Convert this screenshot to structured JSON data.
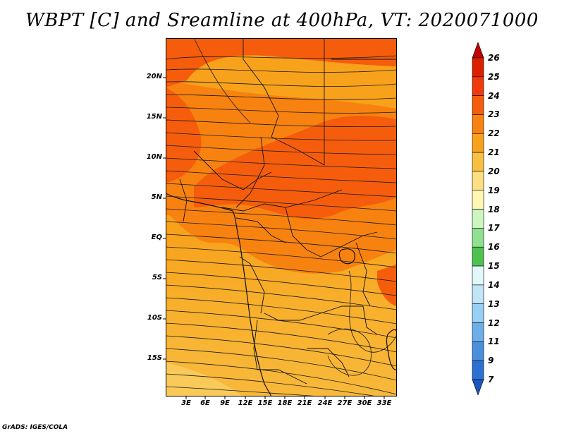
{
  "title": "WBPT [C] and Sreamline at 400hPa, VT: 2020071000",
  "footer": "GrADS: IGES/COLA",
  "map": {
    "region": "Central and East Africa",
    "field": "WBPT",
    "units": "C",
    "level": "400hPa",
    "overlay": "streamlines",
    "lat_labels": [
      "20N",
      "15N",
      "10N",
      "5N",
      "EQ",
      "5S",
      "10S",
      "15S"
    ],
    "lon_labels": [
      "3E",
      "6E",
      "9E",
      "12E",
      "15E",
      "18E",
      "21E",
      "24E",
      "27E",
      "30E",
      "33E"
    ]
  },
  "colorbar": {
    "levels": [
      "26",
      "25",
      "24",
      "23",
      "22",
      "21",
      "20",
      "19",
      "18",
      "17",
      "16",
      "15",
      "14",
      "13",
      "12",
      "11",
      "9",
      "7"
    ],
    "colors": [
      "#c40000",
      "#dc1f00",
      "#f03a0c",
      "#f55d0c",
      "#f8820f",
      "#f8a21c",
      "#f8c042",
      "#fbdf82",
      "#fdf7b3",
      "#ccf5c0",
      "#8fe08f",
      "#4ec24e",
      "#e1f8fb",
      "#bfe5f7",
      "#97cff5",
      "#6caee8",
      "#4a8fde",
      "#2a71d2",
      "#1a55c0"
    ]
  }
}
